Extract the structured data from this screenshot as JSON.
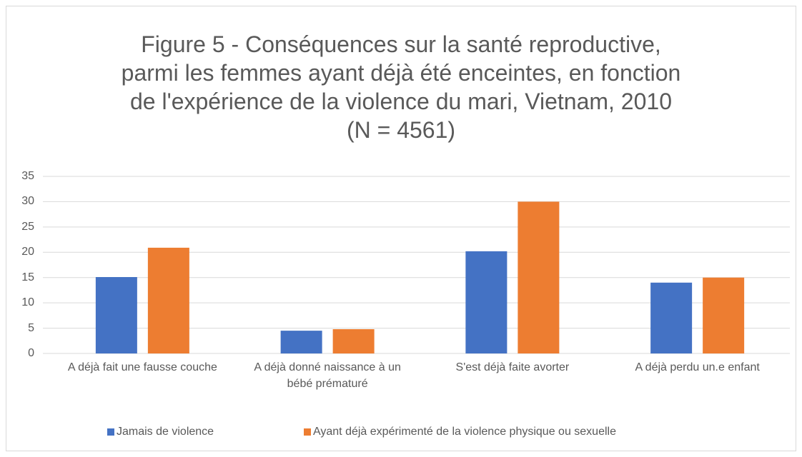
{
  "chart_data": {
    "type": "bar",
    "title": "Figure 5 - Conséquences sur la santé reproductive, parmi les femmes ayant déjà été enceintes, en fonction de l'expérience de la violence du mari, Vietnam, 2010",
    "subtitle": "(N = 4561)",
    "categories": [
      "A déjà fait une fausse couche",
      "A déjà donné naissance à un bébé prématuré",
      "S'est déjà faite avorter",
      "A déjà perdu un.e enfant"
    ],
    "series": [
      {
        "name": "Jamais de violence",
        "color": "#4472c4",
        "values": [
          15.1,
          4.5,
          20.2,
          14
        ]
      },
      {
        "name": "Ayant déjà expérimenté de la violence physique ou sexuelle",
        "color": "#ed7d31",
        "values": [
          20.9,
          4.8,
          30,
          15
        ]
      }
    ],
    "ylim": [
      0,
      35
    ],
    "yticks": [
      0,
      5,
      10,
      15,
      20,
      25,
      30,
      35
    ],
    "grid": true,
    "legend": "bottom"
  }
}
